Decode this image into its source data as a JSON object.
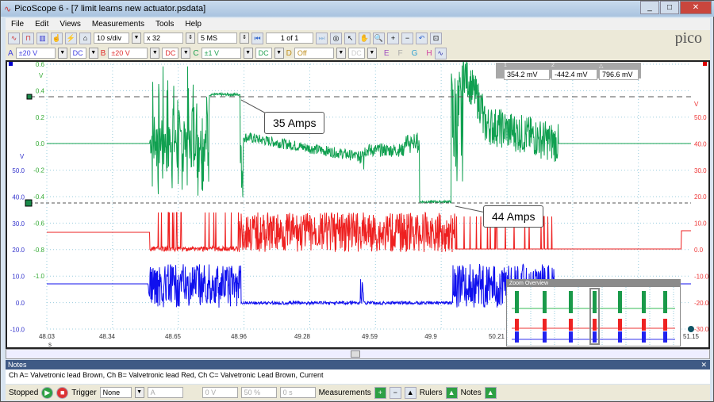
{
  "window": {
    "title": "PicoScope 6 - [7 limit learns new actuator.psdata]",
    "min": "_",
    "max": "□",
    "close": "✕"
  },
  "menu": [
    "File",
    "Edit",
    "Views",
    "Measurements",
    "Tools",
    "Help"
  ],
  "toolbar": {
    "timebase": "10 s/div",
    "zoom": "x 32",
    "samples": "5 MS",
    "buffer": "1 of 1"
  },
  "channels": [
    {
      "id": "A",
      "range": "±20 V",
      "coupling": "DC",
      "color": "#4040e0"
    },
    {
      "id": "B",
      "range": "±20 V",
      "coupling": "DC",
      "color": "#e03030"
    },
    {
      "id": "C",
      "range": "±1 V",
      "coupling": "DC",
      "color": "#20a050"
    },
    {
      "id": "D",
      "range": "Off",
      "coupling": "DC",
      "color": "#c09020"
    }
  ],
  "extra_channels": [
    "E",
    "F",
    "G",
    "H"
  ],
  "logo": "pico",
  "measurements": {
    "col1": "1",
    "col2": "2",
    "col3": "△",
    "v1": "354.2 mV",
    "v2": "-442.4 mV",
    "v3": "796.6 mV"
  },
  "axes": {
    "green_unit": "V",
    "green_ticks": [
      "0.6",
      "0.4",
      "0.2",
      "0.0",
      "-0.2",
      "-0.4",
      "-0.6",
      "-0.8",
      "-1.0"
    ],
    "blue_unit": "V",
    "blue_ticks": [
      "50.0",
      "40.0",
      "30.0",
      "20.0",
      "10.0",
      "0.0",
      "-10.0"
    ],
    "red_unit": "V",
    "red_ticks": [
      "50.0",
      "40.0",
      "30.0",
      "20.0",
      "10.0",
      "0.0",
      "-10.0",
      "-20.0",
      "-30.0"
    ],
    "x_ticks": [
      "48.03",
      "48.34",
      "48.65",
      "48.96",
      "49.28",
      "49.59",
      "49.9",
      "50.21",
      "51.15"
    ],
    "x_unit": "s",
    "scale_a": "x1.0",
    "scale_c": "x1.0",
    "scale_b": "x1.0"
  },
  "callouts": [
    "35 Amps",
    "44 Amps"
  ],
  "zoom_overview": {
    "title": "Zoom Overview"
  },
  "notes": {
    "title": "Notes",
    "text": "Ch A= Valvetronic lead Brown, Ch B= Valvetronic lead Red, Ch C= Valvetronic Lead Brown, Current"
  },
  "status": {
    "state": "Stopped",
    "trigger_label": "Trigger",
    "trigger": "None",
    "trig_ch": "A",
    "level": "0 V",
    "pre": "50 %",
    "delay": "0 s",
    "measurements": "Measurements",
    "rulers": "Rulers",
    "notes": "Notes"
  }
}
